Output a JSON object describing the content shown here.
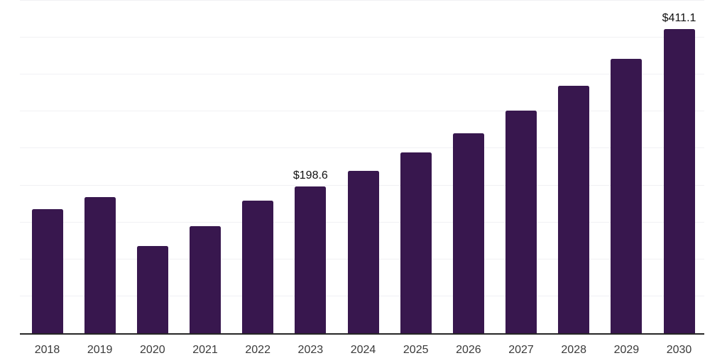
{
  "chart_data": {
    "type": "bar",
    "title": "",
    "xlabel": "",
    "ylabel": "",
    "categories": [
      "2018",
      "2019",
      "2020",
      "2021",
      "2022",
      "2023",
      "2024",
      "2025",
      "2026",
      "2027",
      "2028",
      "2029",
      "2030"
    ],
    "values": [
      167.4,
      183.7,
      118.1,
      145.0,
      178.9,
      198.6,
      219.4,
      244.3,
      270.4,
      300.8,
      333.7,
      370.1,
      411.1
    ],
    "visible_value_labels": [
      {
        "category": "2023",
        "text": "$198.6"
      },
      {
        "category": "2030",
        "text": "$411.1"
      }
    ],
    "ylim": [
      0,
      450
    ],
    "gridline_values": [
      50,
      100,
      150,
      200,
      250,
      300,
      350,
      400,
      450
    ],
    "grid": "horizontal-only, no y tick labels",
    "legend": "none",
    "colors": {
      "bar": "#38174e",
      "axis_line": "#262626",
      "gridline": "#f1f1f4",
      "x_label": "#3a3a3a",
      "value_label": "#111111",
      "background": "#ffffff"
    }
  }
}
